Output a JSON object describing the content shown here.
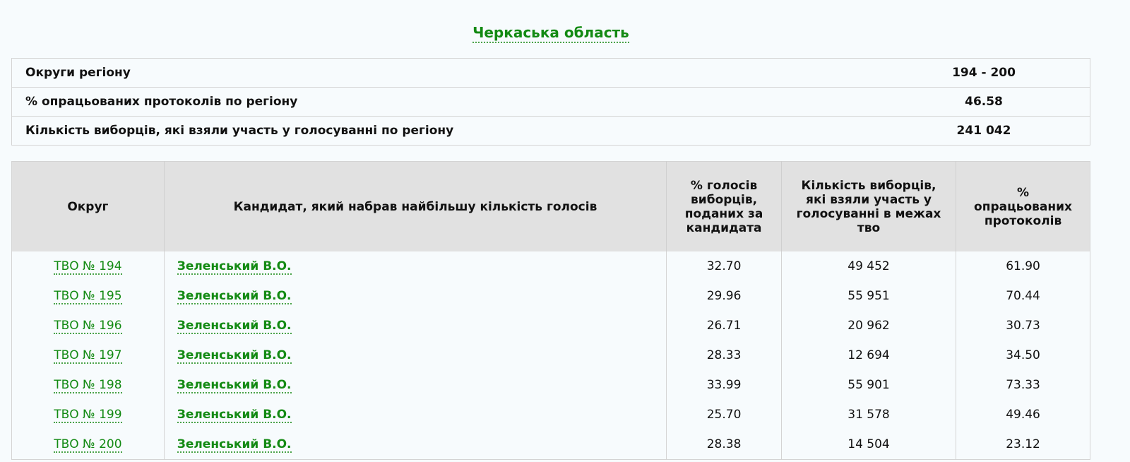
{
  "title": "Черкаська область",
  "summary": [
    {
      "label": "Округи регіону",
      "value": "194 - 200"
    },
    {
      "label": "% опрацьованих протоколів по регіону",
      "value": "46.58"
    },
    {
      "label": "Кількість виборців, які взяли участь у голосуванні по регіону",
      "value": "241 042"
    }
  ],
  "columns": [
    "Округ",
    "Кандидат, який набрав найбільшу кількість голосів",
    "% голосів виборців, поданих за кандидата",
    "Кількість виборців, які взяли участь у голосуванні в межах тво",
    "% опрацьованих протоколів"
  ],
  "rows": [
    {
      "district": "ТВО № 194",
      "candidate": "Зеленський В.О.",
      "pct": "32.70",
      "voters": "49 452",
      "processed": "61.90"
    },
    {
      "district": "ТВО № 195",
      "candidate": "Зеленський В.О.",
      "pct": "29.96",
      "voters": "55 951",
      "processed": "70.44"
    },
    {
      "district": "ТВО № 196",
      "candidate": "Зеленський В.О.",
      "pct": "26.71",
      "voters": "20 962",
      "processed": "30.73"
    },
    {
      "district": "ТВО № 197",
      "candidate": "Зеленський В.О.",
      "pct": "28.33",
      "voters": "12 694",
      "processed": "34.50"
    },
    {
      "district": "ТВО № 198",
      "candidate": "Зеленський В.О.",
      "pct": "33.99",
      "voters": "55 901",
      "processed": "73.33"
    },
    {
      "district": "ТВО № 199",
      "candidate": "Зеленський В.О.",
      "pct": "25.70",
      "voters": "31 578",
      "processed": "49.46"
    },
    {
      "district": "ТВО № 200",
      "candidate": "Зеленський В.О.",
      "pct": "28.38",
      "voters": "14 504",
      "processed": "23.12"
    }
  ],
  "colors": {
    "link": "#138a13",
    "header_bg": "#e1e1e1"
  }
}
